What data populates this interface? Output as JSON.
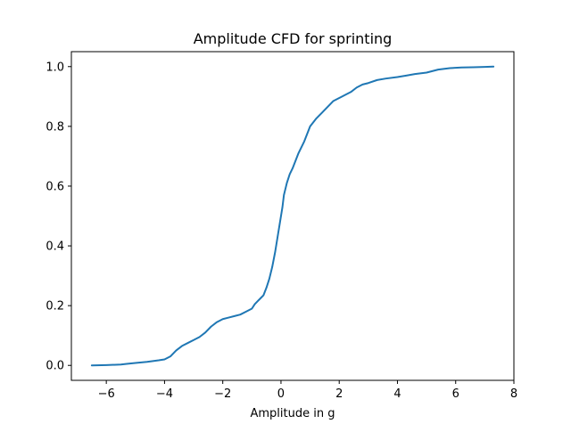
{
  "chart_data": {
    "type": "line",
    "title": "Amplitude CFD for sprinting",
    "xlabel": "Amplitude in g",
    "ylabel": "",
    "xlim": [
      -7.2,
      8.0
    ],
    "ylim": [
      -0.05,
      1.05
    ],
    "xticks": [
      -6,
      -4,
      -2,
      0,
      2,
      4,
      6,
      8
    ],
    "xtick_labels": [
      "−6",
      "−4",
      "−2",
      "0",
      "2",
      "4",
      "6",
      "8"
    ],
    "yticks": [
      0.0,
      0.2,
      0.4,
      0.6,
      0.8,
      1.0
    ],
    "ytick_labels": [
      "0.0",
      "0.2",
      "0.4",
      "0.6",
      "0.8",
      "1.0"
    ],
    "grid": false,
    "series": [
      {
        "color": "#1f77b4",
        "x": [
          -6.5,
          -6.0,
          -5.5,
          -5.3,
          -5.0,
          -4.6,
          -4.2,
          -4.0,
          -3.8,
          -3.6,
          -3.4,
          -3.2,
          -3.0,
          -2.8,
          -2.6,
          -2.4,
          -2.2,
          -2.0,
          -1.8,
          -1.6,
          -1.4,
          -1.2,
          -1.0,
          -0.9,
          -0.8,
          -0.7,
          -0.6,
          -0.5,
          -0.4,
          -0.3,
          -0.2,
          -0.1,
          -0.05,
          0.0,
          0.05,
          0.1,
          0.15,
          0.2,
          0.3,
          0.4,
          0.6,
          0.8,
          1.0,
          1.2,
          1.4,
          1.6,
          1.8,
          2.0,
          2.2,
          2.4,
          2.6,
          2.8,
          3.0,
          3.3,
          3.6,
          4.0,
          4.3,
          4.6,
          5.0,
          5.4,
          5.8,
          6.2,
          6.6,
          7.0,
          7.3
        ],
        "y": [
          0.0,
          0.001,
          0.003,
          0.005,
          0.008,
          0.012,
          0.017,
          0.02,
          0.03,
          0.05,
          0.065,
          0.075,
          0.085,
          0.095,
          0.11,
          0.13,
          0.145,
          0.155,
          0.16,
          0.165,
          0.17,
          0.18,
          0.19,
          0.205,
          0.215,
          0.225,
          0.235,
          0.26,
          0.29,
          0.33,
          0.38,
          0.44,
          0.47,
          0.5,
          0.53,
          0.57,
          0.59,
          0.61,
          0.64,
          0.66,
          0.71,
          0.75,
          0.8,
          0.825,
          0.845,
          0.865,
          0.885,
          0.895,
          0.905,
          0.915,
          0.93,
          0.94,
          0.945,
          0.955,
          0.96,
          0.965,
          0.97,
          0.975,
          0.98,
          0.99,
          0.995,
          0.997,
          0.998,
          0.999,
          1.0
        ]
      }
    ]
  }
}
